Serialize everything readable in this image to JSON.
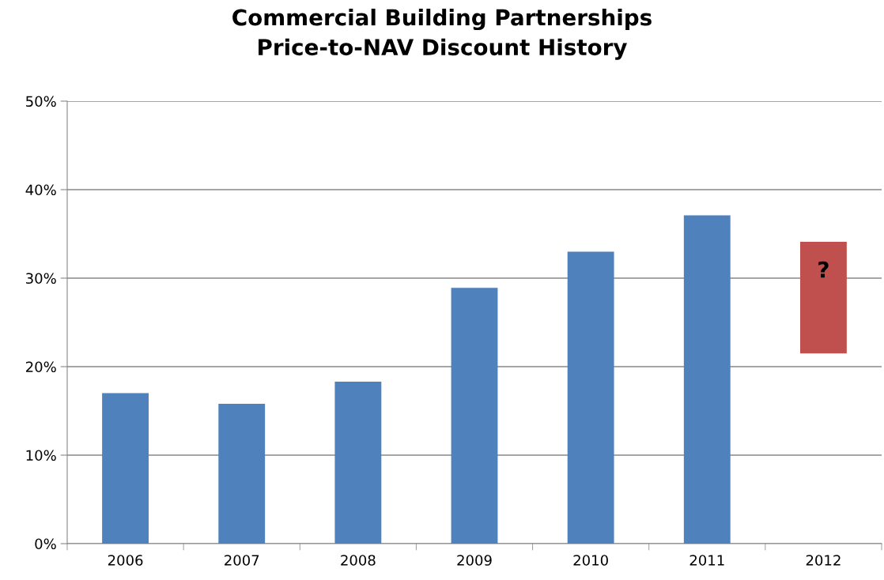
{
  "chart_data": {
    "type": "bar",
    "title": "Commercial Building Partnerships\nPrice-to-NAV Discount History",
    "categories": [
      "2006",
      "2007",
      "2008",
      "2009",
      "2010",
      "2011",
      "2012"
    ],
    "values": [
      17.0,
      15.8,
      18.3,
      28.9,
      33.0,
      37.1,
      12.6
    ],
    "base": [
      0,
      0,
      0,
      0,
      0,
      0,
      21.5
    ],
    "colors": [
      "#4f81bd",
      "#4f81bd",
      "#4f81bd",
      "#4f81bd",
      "#4f81bd",
      "#4f81bd",
      "#c0504d"
    ],
    "ylim": [
      0,
      50
    ],
    "yticks": [
      {
        "value": 0,
        "label": "0%"
      },
      {
        "value": 10,
        "label": "10%"
      },
      {
        "value": 20,
        "label": "20%"
      },
      {
        "value": 30,
        "label": "30%"
      },
      {
        "value": 40,
        "label": "40%"
      },
      {
        "value": 50,
        "label": "50%"
      }
    ],
    "grid": "y",
    "annotations": [
      "?"
    ]
  }
}
